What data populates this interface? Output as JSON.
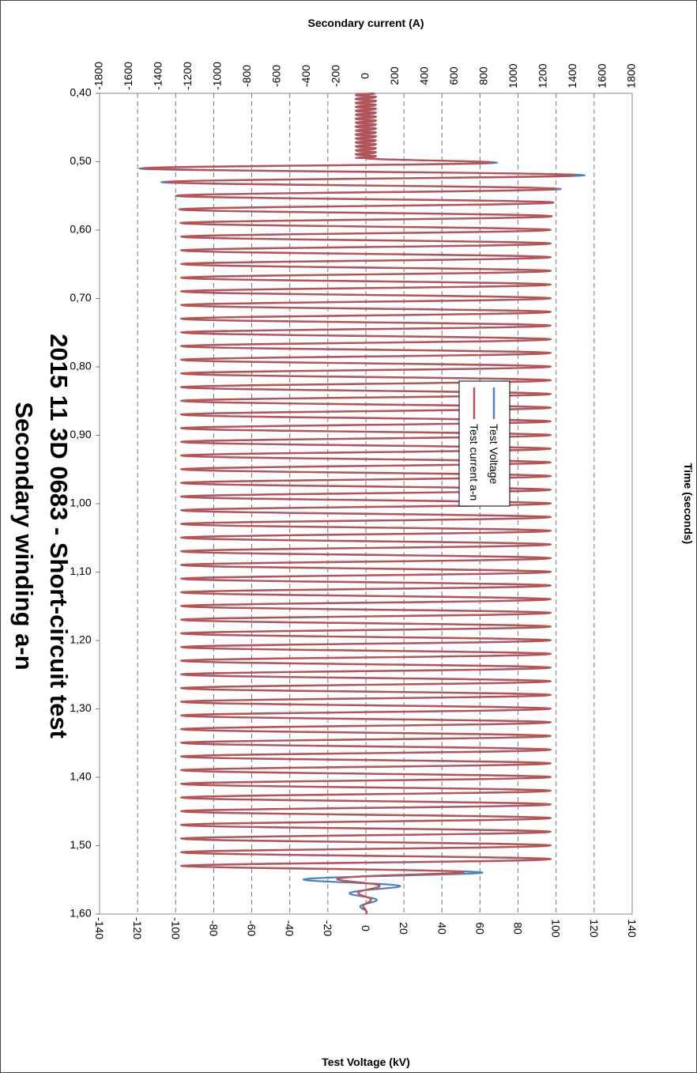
{
  "chart_data": {
    "type": "line",
    "title": "2015 11 3D 0683 - Short-circuit test",
    "subtitle": "Secondary winding a-n",
    "xlabel": "Time (seconds)",
    "ylabel": "Test Voltage (kV)",
    "y2label": "Secondary current (A)",
    "xlim": [
      0.4,
      1.6
    ],
    "ylim": [
      -140,
      140
    ],
    "y2lim": [
      -1800,
      1800
    ],
    "xticks": [
      "0,40",
      "0,50",
      "0,60",
      "0,70",
      "0,80",
      "0,90",
      "1,00",
      "1,10",
      "1,20",
      "1,30",
      "1,40",
      "1,50",
      "1,60"
    ],
    "yticks": [
      "140",
      "120",
      "100",
      "80",
      "60",
      "40",
      "20",
      "0",
      "-20",
      "-40",
      "-60",
      "-80",
      "-100",
      "-120",
      "-140"
    ],
    "y2ticks": [
      "1800",
      "1600",
      "1400",
      "1200",
      "1000",
      "800",
      "600",
      "400",
      "200",
      "0",
      "-200",
      "-400",
      "-600",
      "-800",
      "-1000",
      "-1200",
      "-1400",
      "-1600",
      "-1800"
    ],
    "grid": true,
    "orientation": "rotated 90° clockwise",
    "legend_position": "right",
    "series": [
      {
        "name": "Test Voltage",
        "color": "#4f81bd",
        "axis": "left",
        "frequency_hz": 50,
        "points": [
          [
            0.4,
            0
          ],
          [
            0.495,
            0
          ],
          [
            0.5,
            60
          ],
          [
            0.505,
            -118
          ],
          [
            0.515,
            120
          ],
          [
            0.525,
            -110
          ],
          [
            0.535,
            105
          ],
          [
            0.545,
            -100
          ],
          [
            0.555,
            100
          ],
          [
            0.565,
            -97
          ],
          [
            0.575,
            98
          ],
          [
            0.6,
            -96
          ],
          [
            1.0,
            -96
          ],
          [
            1.52,
            96
          ],
          [
            1.53,
            -95
          ],
          [
            1.535,
            80
          ],
          [
            1.545,
            -40
          ],
          [
            1.555,
            25
          ],
          [
            1.565,
            -10
          ],
          [
            1.6,
            0
          ]
        ],
        "steady_state_amplitude": 96
      },
      {
        "name": "Test current a-n",
        "color": "#c0504d",
        "axis": "right",
        "frequency_hz": 50,
        "points": [
          [
            0.4,
            0
          ],
          [
            0.495,
            0
          ],
          [
            0.5,
            780
          ],
          [
            0.505,
            -1560
          ],
          [
            0.515,
            1440
          ],
          [
            0.525,
            -1380
          ],
          [
            0.535,
            1300
          ],
          [
            0.545,
            -1280
          ],
          [
            0.555,
            1270
          ],
          [
            0.575,
            1260
          ],
          [
            0.6,
            -1250
          ],
          [
            1.0,
            -1250
          ],
          [
            1.52,
            1250
          ],
          [
            1.53,
            -1250
          ],
          [
            1.535,
            950
          ],
          [
            1.545,
            -250
          ],
          [
            1.555,
            120
          ],
          [
            1.565,
            -60
          ],
          [
            1.6,
            0
          ]
        ],
        "steady_state_amplitude": 1250
      }
    ]
  }
}
